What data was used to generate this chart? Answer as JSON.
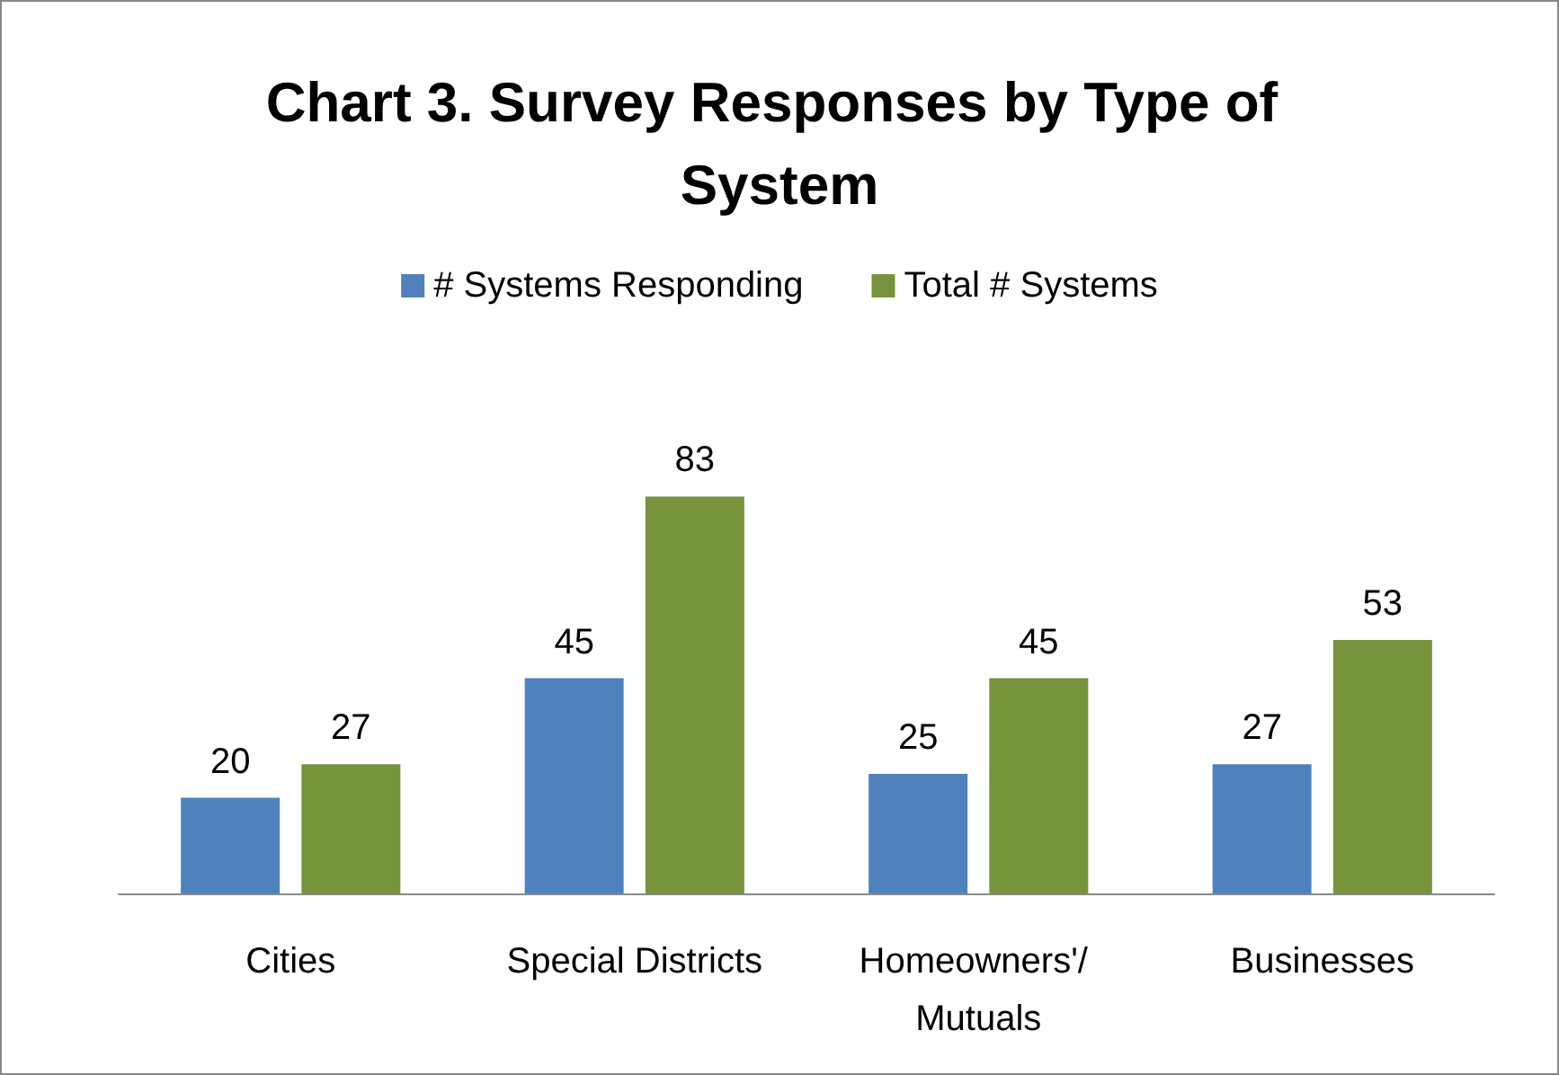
{
  "chart_data": {
    "type": "bar",
    "title": "Chart 3. Survey Responses by Type of System",
    "categories": [
      "Cities",
      "Special Districts",
      "Homeowners'/ Mutuals",
      "Businesses"
    ],
    "series": [
      {
        "name": "# Systems Responding",
        "color": "#4f81bd",
        "values": [
          20,
          45,
          25,
          27
        ]
      },
      {
        "name": "Total # Systems",
        "color": "#77933c",
        "values": [
          27,
          83,
          45,
          53
        ]
      }
    ],
    "data_labels": true,
    "legend": "top"
  }
}
